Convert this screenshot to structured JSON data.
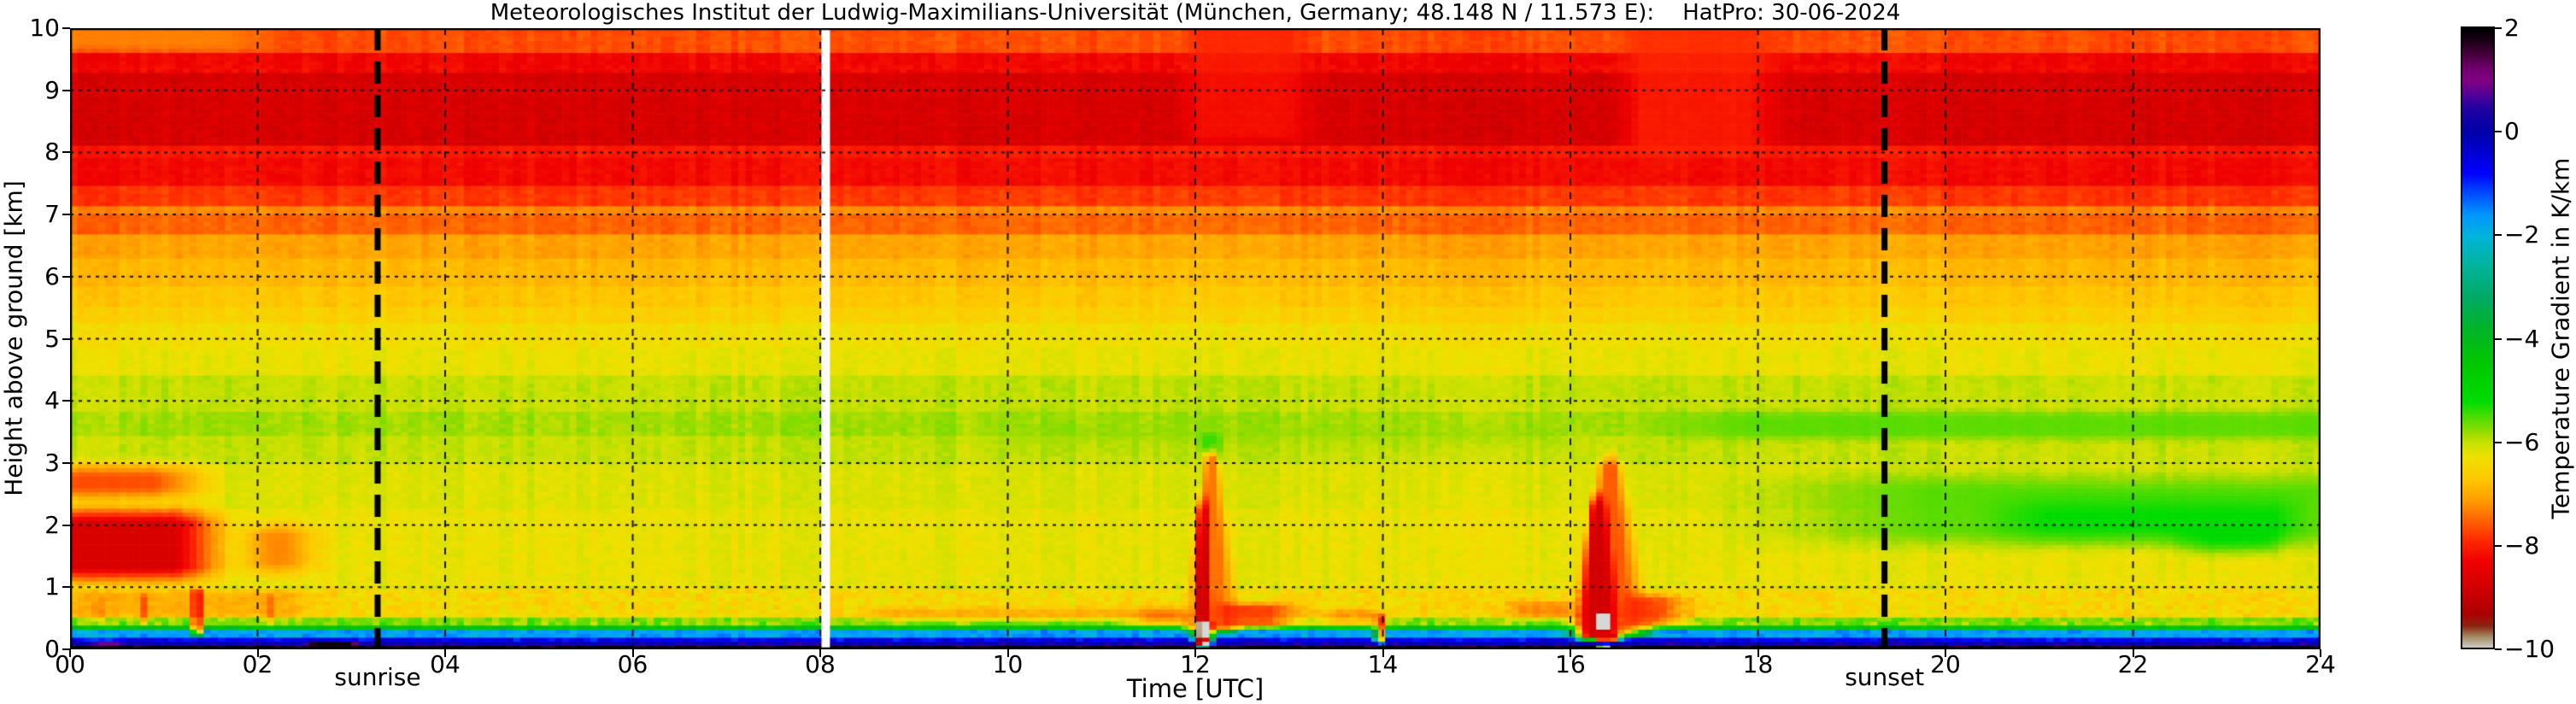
{
  "chart_data": {
    "type": "heatmap",
    "title": "Meteorologisches Institut der Ludwig-Maximilians-Universität (München, Germany; 48.148 N / 11.573 E):    HatPro: 30-06-2024",
    "xlabel": "Time [UTC]",
    "ylabel": "Height above ground [km]",
    "value_units": "K/km",
    "x_range_hours": [
      0,
      24
    ],
    "y_range_km": [
      0,
      10
    ],
    "grid": true,
    "xticks": {
      "values": [
        0,
        2,
        4,
        6,
        8,
        10,
        12,
        14,
        16,
        18,
        20,
        22,
        24
      ],
      "labels": [
        "00",
        "02",
        "04",
        "06",
        "08",
        "10",
        "12",
        "14",
        "16",
        "18",
        "20",
        "22",
        "24"
      ]
    },
    "yticks": {
      "values": [
        0,
        1,
        2,
        3,
        4,
        5,
        6,
        7,
        8,
        9,
        10
      ],
      "labels": [
        "0",
        "1",
        "2",
        "3",
        "4",
        "5",
        "6",
        "7",
        "8",
        "9",
        "10"
      ]
    },
    "colorbar": {
      "label": "Temperature Gradient in K/km",
      "range": [
        -10,
        2
      ],
      "ticks": {
        "values": [
          2,
          0,
          -2,
          -4,
          -6,
          -8,
          -10
        ],
        "labels": [
          "2",
          "0",
          "−2",
          "−4",
          "−6",
          "−8",
          "−10"
        ]
      },
      "position": "right"
    },
    "colormap_stops": [
      [
        2.0,
        "#000000"
      ],
      [
        1.75,
        "#1e0019"
      ],
      [
        1.5,
        "#46003c"
      ],
      [
        1.2,
        "#730073"
      ],
      [
        1.0,
        "#820082"
      ],
      [
        0.75,
        "#5a0096"
      ],
      [
        0.5,
        "#2800a0"
      ],
      [
        0.25,
        "#0f00a5"
      ],
      [
        0.0,
        "#0000aa"
      ],
      [
        -0.4,
        "#0000d2"
      ],
      [
        -0.8,
        "#0000ff"
      ],
      [
        -1.2,
        "#0050ff"
      ],
      [
        -1.6,
        "#0096ff"
      ],
      [
        -2.0,
        "#00b4dc"
      ],
      [
        -2.6,
        "#00b49b"
      ],
      [
        -3.2,
        "#00aa64"
      ],
      [
        -3.8,
        "#00b42a"
      ],
      [
        -4.5,
        "#00c800"
      ],
      [
        -5.2,
        "#00dc00"
      ],
      [
        -5.8,
        "#96dc00"
      ],
      [
        -6.0,
        "#c8e100"
      ],
      [
        -6.3,
        "#f0e100"
      ],
      [
        -6.7,
        "#ffc800"
      ],
      [
        -7.1,
        "#ffa000"
      ],
      [
        -7.5,
        "#ff6400"
      ],
      [
        -7.9,
        "#ff2800"
      ],
      [
        -8.3,
        "#f00000"
      ],
      [
        -8.8,
        "#d20000"
      ],
      [
        -9.3,
        "#ac0000"
      ],
      [
        -9.55,
        "#8c2814"
      ],
      [
        -9.75,
        "#a58c64"
      ],
      [
        -10.0,
        "#d7d7d7"
      ]
    ],
    "base_profile_bands_km_value": [
      [
        9.62,
        10.0,
        -7.65
      ],
      [
        9.32,
        9.62,
        -8.25
      ],
      [
        8.15,
        9.32,
        -8.7
      ],
      [
        7.92,
        8.15,
        -8.05
      ],
      [
        7.5,
        7.92,
        -8.2
      ],
      [
        7.12,
        7.5,
        -7.8
      ],
      [
        7.02,
        7.12,
        -7.25
      ],
      [
        6.68,
        7.02,
        -7.5
      ],
      [
        6.3,
        6.68,
        -7.05
      ],
      [
        5.88,
        6.3,
        -6.85
      ],
      [
        5.55,
        5.88,
        -6.7
      ],
      [
        5.28,
        5.55,
        -6.55
      ],
      [
        4.85,
        5.28,
        -6.35
      ],
      [
        4.4,
        4.85,
        -6.25
      ],
      [
        3.85,
        4.4,
        -6.0
      ],
      [
        3.45,
        3.85,
        -5.85
      ],
      [
        3.0,
        3.45,
        -6.0
      ],
      [
        2.3,
        3.0,
        -6.15
      ],
      [
        1.0,
        2.3,
        -6.25
      ],
      [
        0.55,
        1.0,
        -6.45
      ],
      [
        0.42,
        0.55,
        -5.7
      ],
      [
        0.33,
        0.42,
        -4.35
      ],
      [
        0.22,
        0.33,
        -1.75
      ],
      [
        0.15,
        0.22,
        -0.7
      ],
      [
        0.09,
        0.15,
        0.15
      ],
      [
        0.04,
        0.09,
        1.05
      ],
      [
        0.0,
        0.04,
        1.85
      ]
    ],
    "anomalies": [
      {
        "name": "morning-top-orange",
        "shape": "rect",
        "t": [
          -0.3,
          2.3
        ],
        "h": [
          9.6,
          10.2
        ],
        "v": -7.25,
        "alpha": 0.85,
        "ftl": 0.1,
        "ftr": 0.7,
        "fh": 0.15
      },
      {
        "name": "morning-upper-warm",
        "shape": "rect",
        "t": [
          -0.3,
          1.7
        ],
        "h": [
          2.3,
          3.1
        ],
        "v": -7.9,
        "alpha": 0.85,
        "ftl": 0.1,
        "ftr": 0.8,
        "fh": 0.3
      },
      {
        "name": "morning-blob-core",
        "shape": "rect",
        "t": [
          -0.3,
          1.8
        ],
        "h": [
          0.98,
          2.4
        ],
        "v": -8.8,
        "alpha": 0.95,
        "ftl": 0.1,
        "ftr": 0.7,
        "fh": 0.35
      },
      {
        "name": "morning-blob-decay",
        "shape": "rect",
        "t": [
          1.7,
          2.8
        ],
        "h": [
          1.1,
          2.15
        ],
        "v": -7.9,
        "alpha": 0.6,
        "ftl": 0.4,
        "ftr": 0.5,
        "fh": 0.3
      },
      {
        "name": "morning-low-streaks",
        "shape": "rect",
        "t": [
          -0.2,
          2.7
        ],
        "h": [
          0.48,
          1.0
        ],
        "v": -7.35,
        "alpha": 0.55,
        "ftl": 0.1,
        "ftr": 0.4,
        "fh": 0.1
      },
      {
        "name": "streak-0015",
        "shape": "rect",
        "t": [
          0.25,
          0.36
        ],
        "h": [
          0.4,
          0.95
        ],
        "v": -7.9,
        "alpha": 0.6,
        "ftl": 0.05,
        "ftr": 0.05,
        "fh": 0.15
      },
      {
        "name": "streak-0045",
        "shape": "rect",
        "t": [
          0.72,
          0.84
        ],
        "h": [
          0.35,
          0.98
        ],
        "v": -8.0,
        "alpha": 0.65,
        "ftl": 0.05,
        "ftr": 0.05,
        "fh": 0.15
      },
      {
        "name": "streak-0120",
        "shape": "rect",
        "t": [
          1.28,
          1.43
        ],
        "h": [
          0.18,
          1.05
        ],
        "v": -8.35,
        "alpha": 0.85,
        "ftl": 0.05,
        "ftr": 0.05,
        "fh": 0.12
      },
      {
        "name": "streak-0207",
        "shape": "rect",
        "t": [
          2.05,
          2.2
        ],
        "h": [
          0.35,
          0.95
        ],
        "v": -7.8,
        "alpha": 0.55,
        "ftl": 0.05,
        "ftr": 0.05,
        "fh": 0.15
      },
      {
        "name": "black-patch-0025",
        "shape": "rect",
        "t": [
          0.2,
          0.6
        ],
        "h": [
          -0.1,
          0.12
        ],
        "v": 1.8,
        "alpha": 0.8,
        "ftl": 0.1,
        "ftr": 0.1,
        "fh": 0.04
      },
      {
        "name": "black-blob-0240",
        "shape": "rect",
        "t": [
          2.5,
          3.1
        ],
        "h": [
          -0.1,
          0.16
        ],
        "v": 1.9,
        "alpha": 1,
        "ftl": 0.1,
        "ftr": 0.1,
        "fh": 0.05
      },
      {
        "name": "low-warm-layer-morning",
        "shape": "rect",
        "t": [
          8.3,
          11.95
        ],
        "h": [
          0.42,
          0.72
        ],
        "v": -7.4,
        "alpha": 0.5,
        "ftl": 0.5,
        "ftr": 0.2,
        "fh": 0.1
      },
      {
        "name": "pre-noon-low-red",
        "shape": "rect",
        "t": [
          11.25,
          11.97
        ],
        "h": [
          0.33,
          0.7
        ],
        "v": -7.7,
        "alpha": 0.6,
        "ftl": 0.3,
        "ftr": 0.05,
        "fh": 0.12
      },
      {
        "name": "noon-plume-halo",
        "shape": "plume",
        "tc": 12.17,
        "h": [
          0.25,
          3.4
        ],
        "hw0": 0.38,
        "hw1": 0.06,
        "v": -7.7,
        "alpha": 0.8
      },
      {
        "name": "noon-plume-core",
        "shape": "plume",
        "tc": 12.08,
        "h": [
          0.12,
          2.55
        ],
        "hw0": 0.14,
        "hw1": 0.05,
        "v": -8.85,
        "alpha": 0.95
      },
      {
        "name": "noon-low-wedge",
        "shape": "rect",
        "t": [
          12.2,
          13.3
        ],
        "h": [
          0.3,
          0.8
        ],
        "v": -8.05,
        "alpha": 0.8,
        "ftl": 0.1,
        "ftr": 0.5,
        "fh": 0.12
      },
      {
        "name": "noon-low-wedge-tail",
        "shape": "rect",
        "t": [
          13.2,
          14.15
        ],
        "h": [
          0.34,
          0.7
        ],
        "v": -7.6,
        "alpha": 0.6,
        "ftl": 0.3,
        "ftr": 0.3,
        "fh": 0.1
      },
      {
        "name": "streak-1400",
        "shape": "rect",
        "t": [
          13.9,
          14.03
        ],
        "h": [
          0.07,
          0.62
        ],
        "v": -8.3,
        "alpha": 0.8,
        "ftl": 0.04,
        "ftr": 0.04,
        "fh": 0.1
      },
      {
        "name": "noon-gray-blob",
        "shape": "rect",
        "t": [
          12.02,
          12.19
        ],
        "h": [
          0.02,
          0.46
        ],
        "v": -10,
        "alpha": 1,
        "ftl": 0.02,
        "ftr": 0.02,
        "fh": 0.03
      },
      {
        "name": "noon-gray-red-dot",
        "shape": "rect",
        "t": [
          12.09,
          12.15
        ],
        "h": [
          0.1,
          0.2
        ],
        "v": -8.5,
        "alpha": 1,
        "ftl": 0.01,
        "ftr": 0.01,
        "fh": 0.02
      },
      {
        "name": "pre-16-low-red",
        "shape": "rect",
        "t": [
          15.2,
          16.05
        ],
        "h": [
          0.45,
          0.85
        ],
        "v": -7.7,
        "alpha": 0.6,
        "ftl": 0.3,
        "ftr": 0.1,
        "fh": 0.12
      },
      {
        "name": "pm-plume-halo",
        "shape": "plume",
        "tc": 16.42,
        "h": [
          0.18,
          3.25
        ],
        "hw0": 0.55,
        "hw1": 0.1,
        "v": -7.9,
        "alpha": 0.8
      },
      {
        "name": "pm-plume-core",
        "shape": "plume",
        "tc": 16.3,
        "h": [
          0.12,
          2.6
        ],
        "hw0": 0.3,
        "hw1": 0.08,
        "v": -8.85,
        "alpha": 0.95
      },
      {
        "name": "pm-low-wedge",
        "shape": "rect",
        "t": [
          16.55,
          17.4
        ],
        "h": [
          0.3,
          0.95
        ],
        "v": -8.1,
        "alpha": 0.75,
        "ftl": 0.1,
        "ftr": 0.45,
        "fh": 0.15
      },
      {
        "name": "pm-gray-blob",
        "shape": "rect",
        "t": [
          16.26,
          16.43
        ],
        "h": [
          0.3,
          0.62
        ],
        "v": -10,
        "alpha": 1,
        "ftl": 0.02,
        "ftr": 0.02,
        "fh": 0.03
      },
      {
        "name": "pm-gray-ground",
        "shape": "rect",
        "t": [
          16.3,
          16.45
        ],
        "h": [
          -0.1,
          0.1
        ],
        "v": -10,
        "alpha": 1,
        "ftl": 0.02,
        "ftr": 0.02,
        "fh": 0.03
      },
      {
        "name": "pm-red-between-grays",
        "shape": "rect",
        "t": [
          16.28,
          16.52
        ],
        "h": [
          0.12,
          0.3
        ],
        "v": -8.6,
        "alpha": 0.9,
        "ftl": 0.03,
        "ftr": 0.03,
        "fh": 0.05
      },
      {
        "name": "noon-top-bright",
        "shape": "rect",
        "t": [
          11.8,
          13.35
        ],
        "h": [
          8.1,
          10.2
        ],
        "v": -8.0,
        "alpha": 0.75,
        "ftl": 0.25,
        "ftr": 0.35,
        "fh": 0.2
      },
      {
        "name": "pm-top-bright",
        "shape": "rect",
        "t": [
          16.45,
          18.4
        ],
        "h": [
          7.9,
          10.2
        ],
        "v": -7.9,
        "alpha": 0.8,
        "ftl": 0.3,
        "ftr": 0.5,
        "fh": 0.25
      },
      {
        "name": "evening-green-mid",
        "shape": "rect",
        "t": [
          17.2,
          24.3
        ],
        "h": [
          1.5,
          3.0
        ],
        "v": -5.45,
        "alpha": 0.85,
        "ftl": 2.6,
        "ftr": 0.1,
        "fh": 0.4
      },
      {
        "name": "evening-green-3km5",
        "shape": "rect",
        "t": [
          16.7,
          24.3
        ],
        "h": [
          3.3,
          3.92
        ],
        "v": -5.5,
        "alpha": 0.8,
        "ftl": 1.2,
        "ftr": 0.1,
        "fh": 0.2
      },
      {
        "name": "evening-green-bright",
        "shape": "rect",
        "t": [
          20.3,
          23.9
        ],
        "h": [
          1.6,
          2.6
        ],
        "v": -5.0,
        "alpha": 0.65,
        "ftl": 0.8,
        "ftr": 0.4,
        "fh": 0.4
      },
      {
        "name": "evening-green-brighter",
        "shape": "rect",
        "t": [
          22.3,
          23.7
        ],
        "h": [
          1.4,
          2.15
        ],
        "v": -4.85,
        "alpha": 0.5,
        "ftl": 0.5,
        "ftr": 0.3,
        "fh": 0.3
      },
      {
        "name": "midday-green-band",
        "shape": "rect",
        "t": [
          9.5,
          16.2
        ],
        "h": [
          3.15,
          3.7
        ],
        "v": -5.75,
        "alpha": 0.45,
        "ftl": 0.6,
        "ftr": 0.6,
        "fh": 0.25
      },
      {
        "name": "noon-green-spot",
        "shape": "rect",
        "t": [
          12.0,
          12.35
        ],
        "h": [
          3.1,
          3.55
        ],
        "v": -5.0,
        "alpha": 0.55,
        "ftl": 0.1,
        "ftr": 0.15,
        "fh": 0.15
      }
    ],
    "data_gaps_hours": [
      [
        8.0,
        8.09
      ]
    ],
    "annotations": {
      "sunrise": {
        "label": "sunrise",
        "time_utc": 3.28
      },
      "sunset": {
        "label": "sunset",
        "time_utc": 19.35
      }
    },
    "style": {
      "background": "#ffffff",
      "grid_color": "#000000",
      "sun_line_color": "#000000",
      "spine_color": "#000000"
    }
  }
}
